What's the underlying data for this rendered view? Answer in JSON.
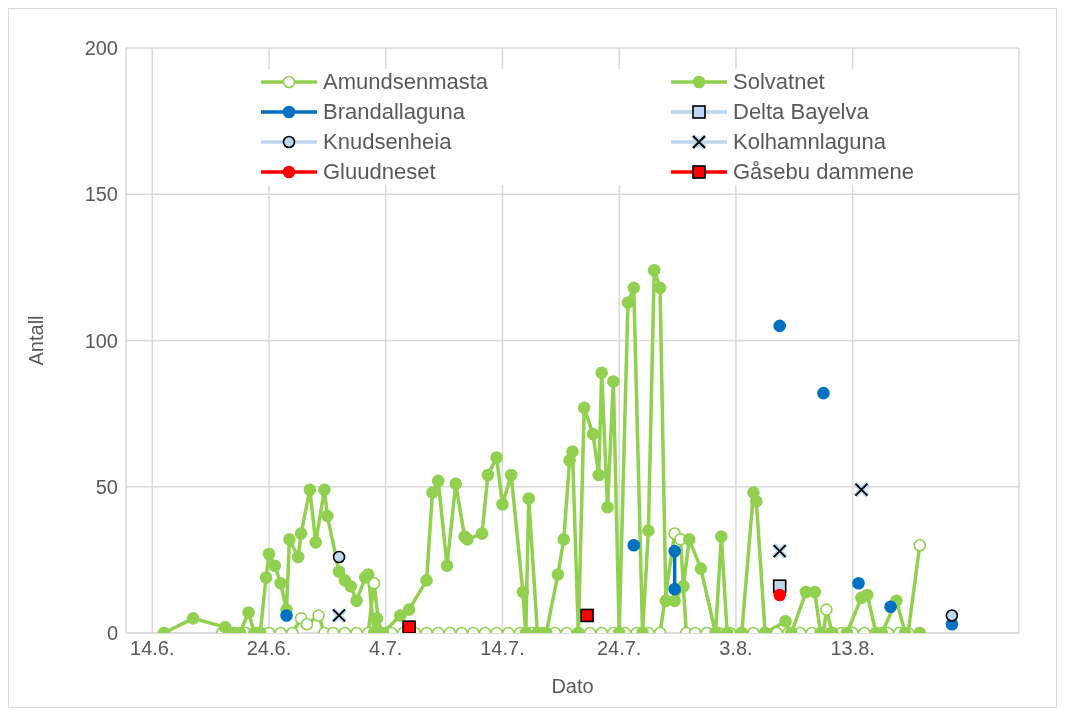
{
  "chart_data": {
    "type": "line",
    "xlabel": "Dato",
    "ylabel": "Antall",
    "xlim": [
      "--06-11T18:00",
      "--08-27T06:00"
    ],
    "xticks": [
      {
        "value": "--06-14",
        "label": "14.6."
      },
      {
        "value": "--06-24",
        "label": "24.6."
      },
      {
        "value": "--07-04",
        "label": "4.7."
      },
      {
        "value": "--07-14",
        "label": "14.7."
      },
      {
        "value": "--07-24",
        "label": "24.7."
      },
      {
        "value": "--08-03",
        "label": "3.8."
      },
      {
        "value": "--08-13",
        "label": "13.8."
      }
    ],
    "ylim": [
      0,
      200
    ],
    "yticks": [
      0,
      50,
      100,
      150,
      200
    ],
    "grid": true,
    "legend": "top",
    "line_style": "solid",
    "series": [
      {
        "name": "Amundsenmasta",
        "color": "#92d050",
        "marker": "circle",
        "x": [
          "--06-20",
          "--06-21",
          "--06-22",
          "--06-23",
          "--06-24",
          "--06-25",
          "--06-26",
          "--06-26T18:00",
          "--06-27T06:00",
          "--06-28T06:00",
          "--06-28T18:00",
          "--06-29T12:00",
          "--06-30T12:00",
          "--07-01T12:00",
          "--07-02T12:00",
          "--07-03",
          "--07-03T12:00",
          "--07-04T12:00",
          "--07-05T12:00",
          "--07-06T12:00",
          "--07-07T12:00",
          "--07-08T12:00",
          "--07-09T12:00",
          "--07-10T12:00",
          "--07-11T12:00",
          "--07-12T12:00",
          "--07-13T12:00",
          "--07-14T12:00",
          "--07-15T12:00",
          "--07-16T12:00",
          "--07-17T12:00",
          "--07-18T12:00",
          "--07-19T12:00",
          "--07-20T12:00",
          "--07-21T12:00",
          "--07-22T12:00",
          "--07-23T12:00",
          "--07-24T12:00",
          "--07-25T12:00",
          "--07-26T12:00",
          "--07-27T12:00",
          "--07-28T18:00",
          "--07-29T06:00",
          "--07-29T18:00",
          "--07-30T12:00",
          "--07-31T12:00",
          "--08-01T12:00",
          "--08-02T12:00",
          "--08-03T12:00",
          "--08-04T12:00",
          "--08-05T12:00",
          "--08-06T12:00",
          "--08-07T12:00",
          "--08-08T12:00",
          "--08-09T12:00",
          "--08-10T12:00",
          "--08-10T18:00",
          "--08-11T06:00",
          "--08-12",
          "--08-13",
          "--08-14",
          "--08-15",
          "--08-16",
          "--08-17",
          "--08-17T18:00",
          "--08-18T18:00"
        ],
        "values": [
          0,
          0,
          0,
          0,
          0,
          0,
          0,
          5,
          3,
          6,
          0,
          0,
          0,
          0,
          0,
          17,
          0,
          0,
          0,
          0,
          0,
          0,
          0,
          0,
          0,
          0,
          0,
          0,
          0,
          0,
          0,
          0,
          0,
          0,
          0,
          0,
          0,
          0,
          0,
          0,
          0,
          34,
          32,
          0,
          0,
          0,
          0,
          0,
          0,
          0,
          0,
          0,
          0,
          0,
          0,
          0,
          8,
          0,
          0,
          0,
          0,
          0,
          0,
          0,
          0,
          30
        ]
      },
      {
        "name": "Solvatnet",
        "color": "#92d050",
        "marker": "circle",
        "x": [
          "--06-15",
          "--06-17T12:00",
          "--06-20T06:00",
          "--06-21",
          "--06-21T12:00",
          "--06-22T06:00",
          "--06-22T18:00",
          "--06-23T06:00",
          "--06-23T18:00",
          "--06-24",
          "--06-24T12:00",
          "--06-25",
          "--06-25T12:00",
          "--06-25T18:00",
          "--06-26T12:00",
          "--06-26T18:00",
          "--06-27T12:00",
          "--06-28",
          "--06-28T18:00",
          "--06-29",
          "--06-30",
          "--06-30T12:00",
          "--07-01",
          "--07-01T12:00",
          "--07-02T06:00",
          "--07-02T12:00",
          "--07-03",
          "--07-03T06:00",
          "--07-03T18:00",
          "--07-05T06:00",
          "--07-06",
          "--07-07T12:00",
          "--07-08",
          "--07-08T12:00",
          "--07-09T06:00",
          "--07-10",
          "--07-10T18:00",
          "--07-11",
          "--07-12T06:00",
          "--07-12T18:00",
          "--07-13T12:00",
          "--07-14",
          "--07-14T18:00",
          "--07-15T18:00",
          "--07-16",
          "--07-16T06:00",
          "--07-17",
          "--07-17T18:00",
          "--07-18T18:00",
          "--07-19T06:00",
          "--07-19T18:00",
          "--07-20",
          "--07-20T12:00",
          "--07-21",
          "--07-21T18:00",
          "--07-22T06:00",
          "--07-22T12:00",
          "--07-23",
          "--07-23T12:00",
          "--07-24",
          "--07-24T18:00",
          "--07-25T06:00",
          "--07-26",
          "--07-26T12:00",
          "--07-27",
          "--07-27T12:00",
          "--07-28",
          "--07-28T18:00",
          "--07-29T12:00",
          "--07-30",
          "--07-31",
          "--08-01T06:00",
          "--08-01T18:00",
          "--08-02T06:00",
          "--08-03T12:00",
          "--08-04T12:00",
          "--08-04T18:00",
          "--08-05T12:00",
          "--08-07T06:00",
          "--08-07T18:00",
          "--08-09",
          "--08-09T18:00",
          "--08-10T06:00",
          "--08-11T06:00",
          "--08-12T12:00",
          "--08-13T18:00",
          "--08-14T06:00",
          "--08-15",
          "--08-15T12:00",
          "--08-16T18:00",
          "--08-17T12:00",
          "--08-18T18:00"
        ],
        "values": [
          0,
          5,
          2,
          0,
          0,
          7,
          0,
          0,
          19,
          27,
          23,
          17,
          8,
          32,
          26,
          34,
          49,
          31,
          49,
          40,
          21,
          18,
          16,
          11,
          19,
          20,
          0,
          5,
          0,
          6,
          8,
          18,
          48,
          52,
          23,
          51,
          33,
          32,
          34,
          54,
          60,
          44,
          54,
          14,
          0,
          46,
          0,
          0,
          20,
          32,
          59,
          62,
          0,
          77,
          68,
          54,
          89,
          43,
          86,
          0,
          113,
          118,
          0,
          35,
          124,
          118,
          11,
          11,
          16,
          32,
          22,
          0,
          33,
          0,
          0,
          48,
          45,
          0,
          4,
          0,
          14,
          14,
          0,
          0,
          0,
          12,
          13,
          0,
          0,
          11,
          0,
          0
        ]
      },
      {
        "name": "Brandallaguna",
        "color": "#0070c0",
        "marker": "circle",
        "x": [
          "--06-25T12:00",
          "--07-10",
          "--07-25T06:00",
          "--07-27",
          "--07-28T18:00",
          "--07-28T18:00",
          "--08-02",
          "--08-06T18:00",
          "--08-08",
          "--08-10T12:00",
          "--08-12",
          "--08-13T12:00",
          "--08-15",
          "--08-16T06:00",
          "--08-19",
          "--08-21T12:00"
        ],
        "values": [
          6,
          null,
          30,
          null,
          28,
          15,
          null,
          105,
          null,
          82,
          null,
          17,
          null,
          9,
          null,
          3
        ]
      },
      {
        "name": "Delta Bayelva",
        "color": "#bdd7ee",
        "marker": "square",
        "x": [
          "--08-06T18:00"
        ],
        "values": [
          16
        ]
      },
      {
        "name": "Knudsenheia",
        "color": "#bdd7ee",
        "marker": "circle",
        "x": [
          "--06-30",
          "--07-20",
          "--08-21T12:00"
        ],
        "values": [
          26,
          null,
          6
        ]
      },
      {
        "name": "Kolhamnlaguna",
        "color": "#bdd7ee",
        "marker": "cross",
        "x": [
          "--06-30",
          "--07-20",
          "--08-06T18:00",
          "--08-10",
          "--08-13T18:00"
        ],
        "values": [
          6,
          null,
          28,
          null,
          49
        ]
      },
      {
        "name": "Gluudneset",
        "color": "#ff0000",
        "marker": "circle",
        "x": [
          "--08-06T18:00"
        ],
        "values": [
          13
        ]
      },
      {
        "name": "Gåsebu dammene",
        "color": "#ff0000",
        "marker": "square",
        "x": [
          "--07-06",
          "--07-14",
          "--07-21T06:00"
        ],
        "values": [
          2,
          null,
          6
        ]
      }
    ]
  }
}
